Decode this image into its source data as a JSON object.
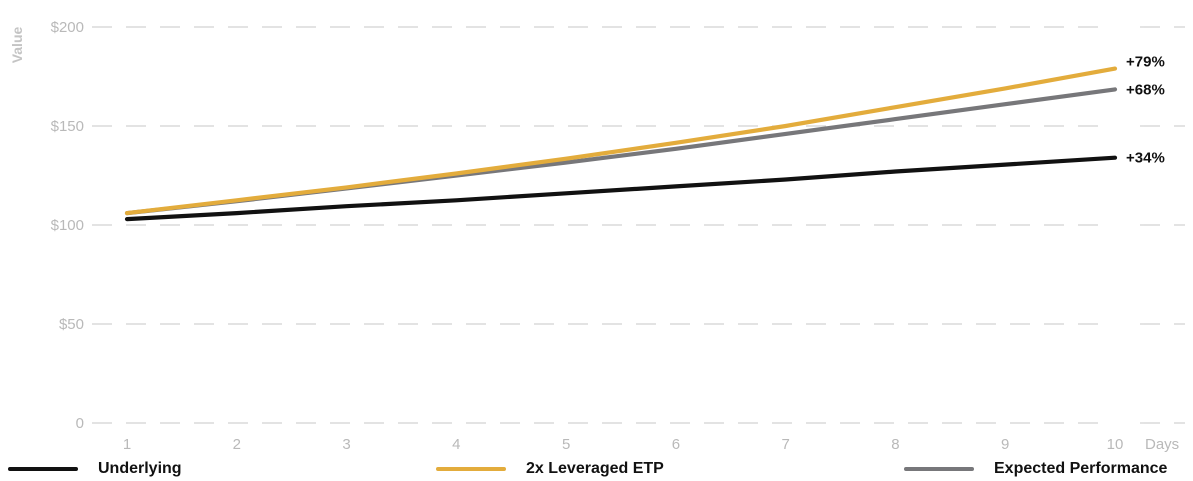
{
  "chart_data": {
    "type": "line",
    "ylabel": "Value",
    "x_unit_label": "Days",
    "x": [
      1,
      2,
      3,
      4,
      5,
      6,
      7,
      8,
      9,
      10
    ],
    "x_tick_labels": [
      "1",
      "2",
      "3",
      "4",
      "5",
      "6",
      "7",
      "8",
      "9",
      "10"
    ],
    "y_tick_labels": [
      "$200",
      "$150",
      "$100",
      "$50",
      "0"
    ],
    "y_ticks": [
      200,
      150,
      100,
      50,
      0
    ],
    "ylim": [
      0,
      200
    ],
    "xlim": [
      1,
      10
    ],
    "grid": "horizontal dashed",
    "legend_position": "bottom",
    "series": [
      {
        "name": "Underlying",
        "color": "#111111",
        "values": [
          103,
          106,
          109.5,
          112.5,
          116,
          119.5,
          123,
          127,
          130.5,
          134
        ],
        "end_label": "+34%"
      },
      {
        "name": "2x Leveraged ETP",
        "color": "#e3ac3c",
        "values": [
          106,
          112.5,
          119,
          126,
          133.5,
          141.5,
          150,
          159.5,
          169,
          179
        ],
        "end_label": "+79%"
      },
      {
        "name": "Expected Performance",
        "color": "#77777a",
        "values": [
          106,
          112,
          118.5,
          125,
          131.5,
          138.5,
          146,
          153.5,
          161,
          168.5
        ],
        "end_label": "+68%"
      }
    ]
  }
}
